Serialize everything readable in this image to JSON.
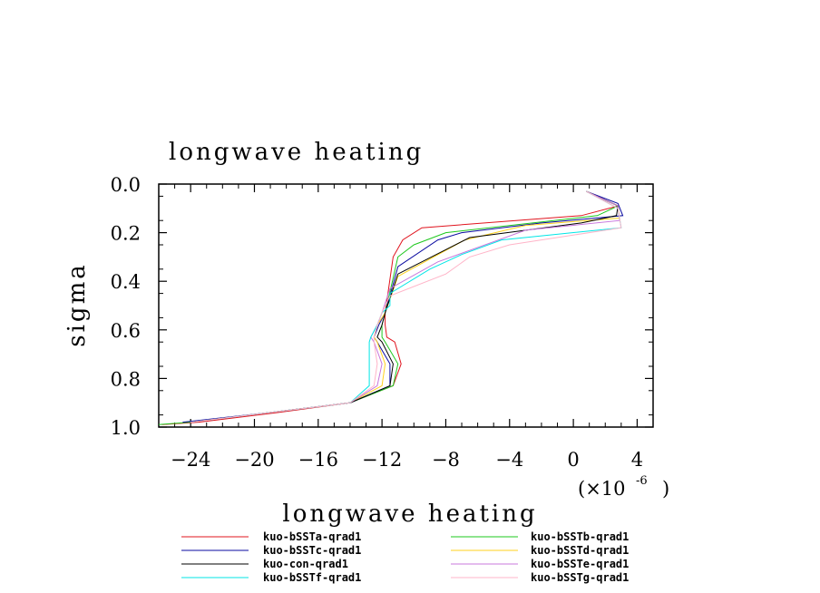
{
  "chart_data": {
    "type": "line",
    "title": "longwave heating",
    "xlabel": "longwave heating",
    "ylabel": "sigma",
    "x_multiplier_label": "(×10",
    "x_multiplier_exp": "-6",
    "x_multiplier_close": ")",
    "xlim": [
      -26,
      5
    ],
    "ylim": [
      1.0,
      0.0
    ],
    "x_ticks": [
      -24,
      -20,
      -16,
      -12,
      -8,
      -4,
      0,
      4
    ],
    "x_tick_labels": [
      "−24",
      "−20",
      "−16",
      "−12",
      "−8",
      "−4",
      "0",
      "4"
    ],
    "y_ticks": [
      0.0,
      0.2,
      0.4,
      0.6,
      0.8,
      1.0
    ],
    "y_tick_labels": [
      "0.0",
      "0.2",
      "0.4",
      "0.6",
      "0.8",
      "1.0"
    ],
    "legend_placement": "bottom",
    "series": [
      {
        "name": "kuo-bSSTa-qrad1",
        "color": "#e0141e",
        "points": [
          [
            0.8,
            0.03
          ],
          [
            2.8,
            0.09
          ],
          [
            0.5,
            0.13
          ],
          [
            -9.5,
            0.18
          ],
          [
            -10.7,
            0.23
          ],
          [
            -11.3,
            0.3
          ],
          [
            -11.8,
            0.53
          ],
          [
            -11.8,
            0.58
          ],
          [
            -11.7,
            0.63
          ],
          [
            -11.2,
            0.65
          ],
          [
            -10.8,
            0.74
          ],
          [
            -11.3,
            0.83
          ],
          [
            -14.0,
            0.9
          ],
          [
            -18.5,
            0.94
          ],
          [
            -23.5,
            0.98
          ],
          [
            -25.8,
            0.99
          ]
        ]
      },
      {
        "name": "kuo-bSSTb-qrad1",
        "color": "#1ec81e",
        "points": [
          [
            0.8,
            0.03
          ],
          [
            2.8,
            0.09
          ],
          [
            1.5,
            0.13
          ],
          [
            -8.0,
            0.2
          ],
          [
            -10.0,
            0.25
          ],
          [
            -11.0,
            0.3
          ],
          [
            -11.8,
            0.53
          ],
          [
            -12.0,
            0.58
          ],
          [
            -12.0,
            0.63
          ],
          [
            -11.8,
            0.65
          ],
          [
            -11.0,
            0.74
          ],
          [
            -11.3,
            0.83
          ],
          [
            -14.0,
            0.9
          ],
          [
            -19.0,
            0.94
          ],
          [
            -24.0,
            0.98
          ],
          [
            -26.0,
            0.99
          ]
        ]
      },
      {
        "name": "kuo-bSSTc-qrad1",
        "color": "#0a0aa0",
        "points": [
          [
            0.8,
            0.03
          ],
          [
            2.8,
            0.08
          ],
          [
            3.1,
            0.13
          ],
          [
            -2.0,
            0.16
          ],
          [
            -7.0,
            0.2
          ],
          [
            -8.5,
            0.23
          ],
          [
            -11.0,
            0.34
          ],
          [
            -11.8,
            0.53
          ],
          [
            -12.2,
            0.58
          ],
          [
            -12.5,
            0.63
          ],
          [
            -12.3,
            0.65
          ],
          [
            -11.5,
            0.74
          ],
          [
            -11.5,
            0.83
          ],
          [
            -14.0,
            0.9
          ],
          [
            -19.0,
            0.94
          ],
          [
            -24.5,
            0.98
          ]
        ]
      },
      {
        "name": "kuo-bSSTd-qrad1",
        "color": "#ffd21e",
        "points": [
          [
            0.8,
            0.03
          ],
          [
            2.8,
            0.09
          ],
          [
            2.9,
            0.14
          ],
          [
            -3.0,
            0.17
          ],
          [
            -6.8,
            0.23
          ],
          [
            -11.0,
            0.38
          ],
          [
            -11.8,
            0.53
          ],
          [
            -12.3,
            0.58
          ],
          [
            -12.5,
            0.63
          ],
          [
            -12.3,
            0.65
          ],
          [
            -11.8,
            0.74
          ],
          [
            -12.0,
            0.83
          ],
          [
            -14.0,
            0.9
          ],
          [
            -19.0,
            0.94
          ],
          [
            -24.0,
            0.98
          ]
        ]
      },
      {
        "name": "kuo-con-qrad1",
        "color": "#000000",
        "points": [
          [
            0.8,
            0.03
          ],
          [
            2.8,
            0.09
          ],
          [
            2.7,
            0.13
          ],
          [
            0.5,
            0.16
          ],
          [
            -6.5,
            0.22
          ],
          [
            -11.0,
            0.37
          ],
          [
            -11.8,
            0.53
          ],
          [
            -12.0,
            0.58
          ],
          [
            -12.3,
            0.63
          ],
          [
            -12.0,
            0.65
          ],
          [
            -11.3,
            0.74
          ],
          [
            -11.5,
            0.83
          ],
          [
            -14.0,
            0.9
          ],
          [
            -19.0,
            0.94
          ],
          [
            -24.0,
            0.98
          ]
        ]
      },
      {
        "name": "kuo-bSSTe-qrad1",
        "color": "#c878dc",
        "points": [
          [
            0.8,
            0.03
          ],
          [
            2.8,
            0.09
          ],
          [
            2.9,
            0.15
          ],
          [
            -3.0,
            0.19
          ],
          [
            -8.5,
            0.32
          ],
          [
            -11.5,
            0.43
          ],
          [
            -12.0,
            0.53
          ],
          [
            -12.3,
            0.58
          ],
          [
            -12.7,
            0.63
          ],
          [
            -12.5,
            0.65
          ],
          [
            -12.0,
            0.74
          ],
          [
            -12.3,
            0.83
          ],
          [
            -14.0,
            0.9
          ],
          [
            -19.0,
            0.94
          ],
          [
            -24.0,
            0.98
          ]
        ]
      },
      {
        "name": "kuo-bSSTf-qrad1",
        "color": "#00e6e6",
        "points": [
          [
            0.8,
            0.03
          ],
          [
            2.8,
            0.1
          ],
          [
            3.0,
            0.18
          ],
          [
            -4.5,
            0.23
          ],
          [
            -7.0,
            0.29
          ],
          [
            -9.0,
            0.35
          ],
          [
            -11.5,
            0.45
          ],
          [
            -11.5,
            0.5
          ],
          [
            -12.0,
            0.53
          ],
          [
            -12.3,
            0.58
          ],
          [
            -12.7,
            0.63
          ],
          [
            -12.8,
            0.65
          ],
          [
            -12.8,
            0.74
          ],
          [
            -12.8,
            0.83
          ],
          [
            -14.0,
            0.9
          ],
          [
            -19.0,
            0.94
          ],
          [
            -24.0,
            0.98
          ]
        ]
      },
      {
        "name": "kuo-bSSTg-qrad1",
        "color": "#ffb4c8",
        "points": [
          [
            0.8,
            0.03
          ],
          [
            2.8,
            0.1
          ],
          [
            3.0,
            0.18
          ],
          [
            -4.0,
            0.25
          ],
          [
            -6.5,
            0.3
          ],
          [
            -8.0,
            0.37
          ],
          [
            -11.5,
            0.46
          ],
          [
            -12.0,
            0.53
          ],
          [
            -12.3,
            0.58
          ],
          [
            -12.5,
            0.63
          ],
          [
            -12.5,
            0.65
          ],
          [
            -12.3,
            0.74
          ],
          [
            -12.5,
            0.83
          ],
          [
            -14.0,
            0.9
          ],
          [
            -19.0,
            0.94
          ],
          [
            -24.0,
            0.98
          ]
        ]
      }
    ]
  }
}
